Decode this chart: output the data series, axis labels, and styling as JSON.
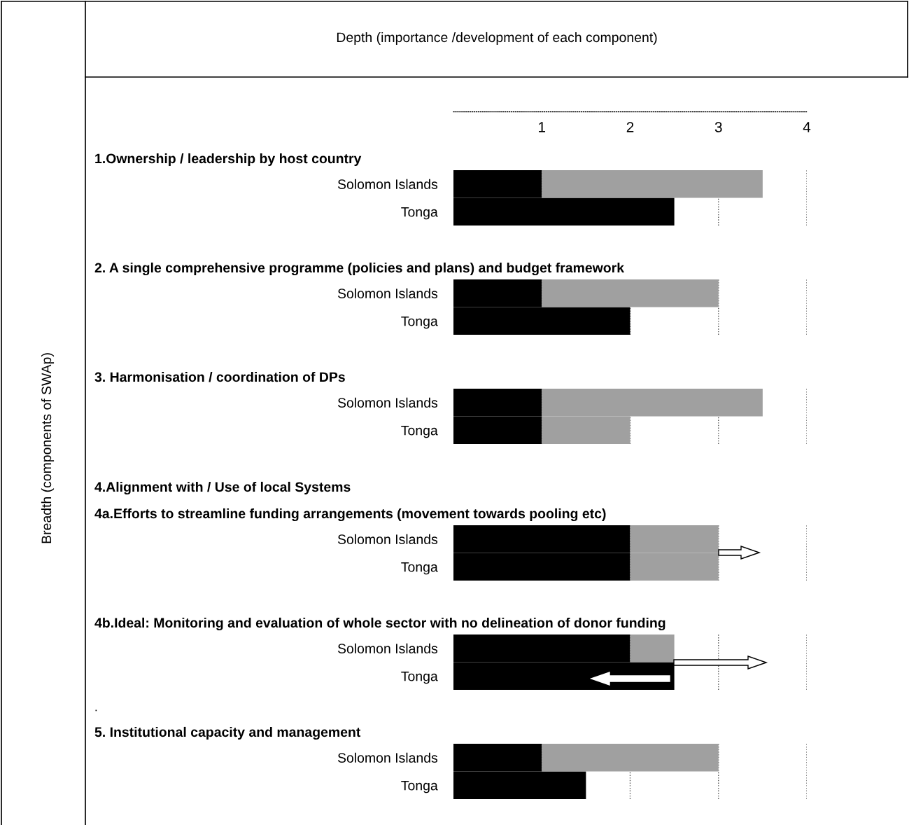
{
  "chart_data": [
    {
      "type": "other",
      "title": "Depth (importance /development of each component)",
      "ylabel": "Breadth (components of SWAp)"
    },
    {
      "type": "bar",
      "orientation": "horizontal",
      "stacked": true,
      "title": "1.Ownership / leadership by host country",
      "categories": [
        "Solomon Islands",
        "Tonga"
      ],
      "xlim": [
        0,
        4
      ],
      "xticks": [
        1,
        2,
        3,
        4
      ],
      "grid": "x",
      "series": [
        {
          "color": "#000000",
          "values": [
            1,
            2.5
          ]
        },
        {
          "color": "#a0a0a0",
          "values": [
            2.5,
            null
          ]
        }
      ]
    },
    {
      "type": "bar",
      "orientation": "horizontal",
      "stacked": true,
      "title": "2. A single comprehensive programme (policies and plans) and budget framework",
      "categories": [
        "Solomon Islands",
        "Tonga"
      ],
      "xlim": [
        0,
        4
      ],
      "xticks": [
        1,
        2,
        3,
        4
      ],
      "grid": "x",
      "tick_labels": "y",
      "series": [
        {
          "color": "#000000",
          "values": [
            1,
            2
          ]
        },
        {
          "color": "#a0a0a0",
          "values": [
            2,
            null
          ]
        }
      ]
    },
    {
      "type": "bar",
      "orientation": "horizontal",
      "stacked": true,
      "title": "3. Harmonisation / coordination of DPs",
      "categories": [
        "Solomon Islands",
        "Tonga"
      ],
      "xlim": [
        0,
        4
      ],
      "xticks": [
        1,
        2,
        3,
        4
      ],
      "grid": "x",
      "tick_labels": "y",
      "series": [
        {
          "color": "#000000",
          "values": [
            1,
            1
          ]
        },
        {
          "color": "#a0a0a0",
          "values": [
            2.5,
            1
          ]
        }
      ]
    },
    {
      "type": "bar",
      "orientation": "horizontal",
      "stacked": true,
      "title": "4.Alignment with / Use of local Systems",
      "subtitle": "4a.Efforts to streamline funding arrangements (movement towards pooling etc)",
      "categories": [
        "Solomon Islands",
        "Tonga"
      ],
      "xlim": [
        0,
        4
      ],
      "xticks": [
        1,
        2,
        3,
        4
      ],
      "grid": "x",
      "tick_labels": "y",
      "series": [
        {
          "color": "#000000",
          "values": [
            2,
            2
          ]
        },
        {
          "color": "#a0a0a0",
          "values": [
            1,
            1
          ]
        }
      ]
    },
    {
      "type": "bar",
      "orientation": "horizontal",
      "stacked": true,
      "title": "4b.Ideal: Monitoring and evaluation of whole sector with no delineation of donor funding",
      "categories": [
        "Solomon Islands",
        "Tonga"
      ],
      "xlim": [
        0,
        4
      ],
      "xticks": [
        1,
        2,
        3,
        4
      ],
      "grid": "x",
      "tick_labels": "y",
      "series": [
        {
          "color": "#000000",
          "values": [
            2,
            2.5
          ]
        },
        {
          "color": "#a0a0a0",
          "values": [
            0.5,
            null
          ]
        }
      ]
    },
    {
      "type": "bar",
      "orientation": "horizontal",
      "stacked": true,
      "title": "5. Institutional capacity and management",
      "categories": [
        "Solomon Islands",
        "Tonga"
      ],
      "xlim": [
        0,
        4
      ],
      "xticks": [
        1,
        2,
        3,
        4
      ],
      "grid": "x",
      "tick_labels": "y",
      "series": [
        {
          "color": "#000000",
          "values": [
            1,
            1.5
          ]
        },
        {
          "color": "#a0a0a0",
          "values": [
            2,
            null
          ]
        }
      ],
      "annotations": [
        "."
      ]
    }
  ]
}
